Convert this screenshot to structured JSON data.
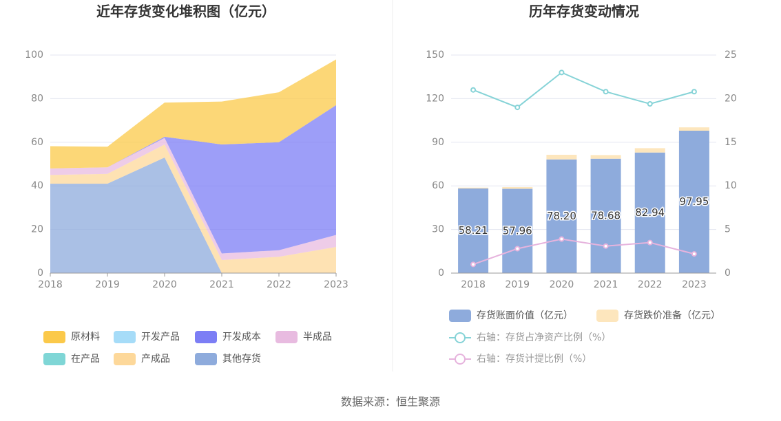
{
  "chart_data": [
    {
      "type": "area",
      "title": "近年存货变化堆积图（亿元）",
      "categories": [
        "2018",
        "2019",
        "2020",
        "2021",
        "2022",
        "2023"
      ],
      "ylim": [
        0,
        100
      ],
      "yticks": [
        0,
        20,
        40,
        60,
        80,
        100
      ],
      "grid": true,
      "series": [
        {
          "name": "其他存货",
          "color": "#8eabdc",
          "values": [
            41,
            41,
            53,
            0,
            0,
            0
          ]
        },
        {
          "name": "产成品",
          "color": "#fdd89a",
          "values": [
            4,
            4.5,
            6,
            6,
            7.5,
            12
          ]
        },
        {
          "name": "在产品",
          "color": "#7fd6d6",
          "values": [
            0,
            0,
            0,
            0,
            0,
            0
          ]
        },
        {
          "name": "半成品",
          "color": "#e8bbe0",
          "values": [
            3,
            3,
            3,
            3,
            3,
            5.5
          ]
        },
        {
          "name": "开发成本",
          "color": "#7c7ef5",
          "values": [
            0,
            0,
            0.5,
            50,
            49.5,
            59.5
          ]
        },
        {
          "name": "开发产品",
          "color": "#a6dcf8",
          "values": [
            0,
            0,
            0,
            0,
            0,
            0
          ]
        },
        {
          "name": "原材料",
          "color": "#fbc94a",
          "values": [
            10.21,
            9.46,
            15.7,
            19.68,
            22.94,
            21
          ]
        }
      ],
      "legend_order": [
        6,
        5,
        4,
        3,
        2,
        1,
        0
      ]
    },
    {
      "type": "bar",
      "title": "历年存货变动情况",
      "categories": [
        "2018",
        "2019",
        "2020",
        "2021",
        "2022",
        "2023"
      ],
      "ylim": [
        0,
        150
      ],
      "yticks": [
        0,
        30,
        60,
        90,
        120,
        150
      ],
      "y2lim": [
        0,
        25
      ],
      "y2ticks": [
        0,
        5,
        10,
        15,
        20,
        25
      ],
      "grid": true,
      "series": [
        {
          "name": "存货账面价值（亿元）",
          "color": "#8eabdc",
          "values": [
            58.21,
            57.96,
            78.2,
            78.68,
            82.94,
            97.95
          ],
          "value_labels": [
            "58.21",
            "57.96",
            "78.20",
            "78.68",
            "82.94",
            "97.95"
          ]
        },
        {
          "name": "存货跌价准备（亿元）",
          "color": "#fde6bd",
          "values": [
            0.6,
            1.2,
            3.2,
            2.5,
            3.0,
            2.3
          ]
        },
        {
          "name": "右轴：存货占净资产比例（%）",
          "color": "#86d3d7",
          "axis": "y2",
          "values": [
            21,
            19,
            23,
            20.8,
            19.4,
            20.8
          ]
        },
        {
          "name": "右轴：存货计提比例（%）",
          "color": "#e6b3dd",
          "axis": "y2",
          "values": [
            1.0,
            2.8,
            3.9,
            3.1,
            3.5,
            2.2
          ]
        }
      ]
    }
  ],
  "source": "数据来源：恒生聚源"
}
